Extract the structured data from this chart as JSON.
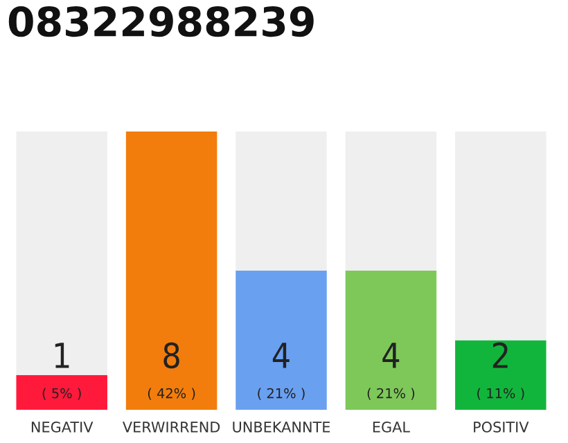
{
  "chart_data": {
    "type": "bar",
    "title": "08322988239",
    "categories": [
      "NEGATIV",
      "VERWIRREND",
      "UNBEKANNTE",
      "EGAL",
      "POSITIV"
    ],
    "ylim": [
      0,
      8
    ],
    "tick_labels": "x",
    "stacked": true,
    "series": [
      {
        "colors": [
          "#ff1a3c",
          "#f27d0c",
          "#6aa0f0",
          "#7ec85a",
          "#12b53c"
        ],
        "values": [
          1,
          8,
          4,
          4,
          2
        ],
        "value_labels": [
          "1\n( 5% )",
          "8\n( 42% )",
          "4\n( 21% )",
          "4\n( 21% )",
          "2\n( 11% )"
        ]
      },
      {
        "color": "#efefef",
        "values": [
          7,
          0,
          4,
          4,
          6
        ]
      }
    ],
    "grid": false,
    "legend": false
  }
}
